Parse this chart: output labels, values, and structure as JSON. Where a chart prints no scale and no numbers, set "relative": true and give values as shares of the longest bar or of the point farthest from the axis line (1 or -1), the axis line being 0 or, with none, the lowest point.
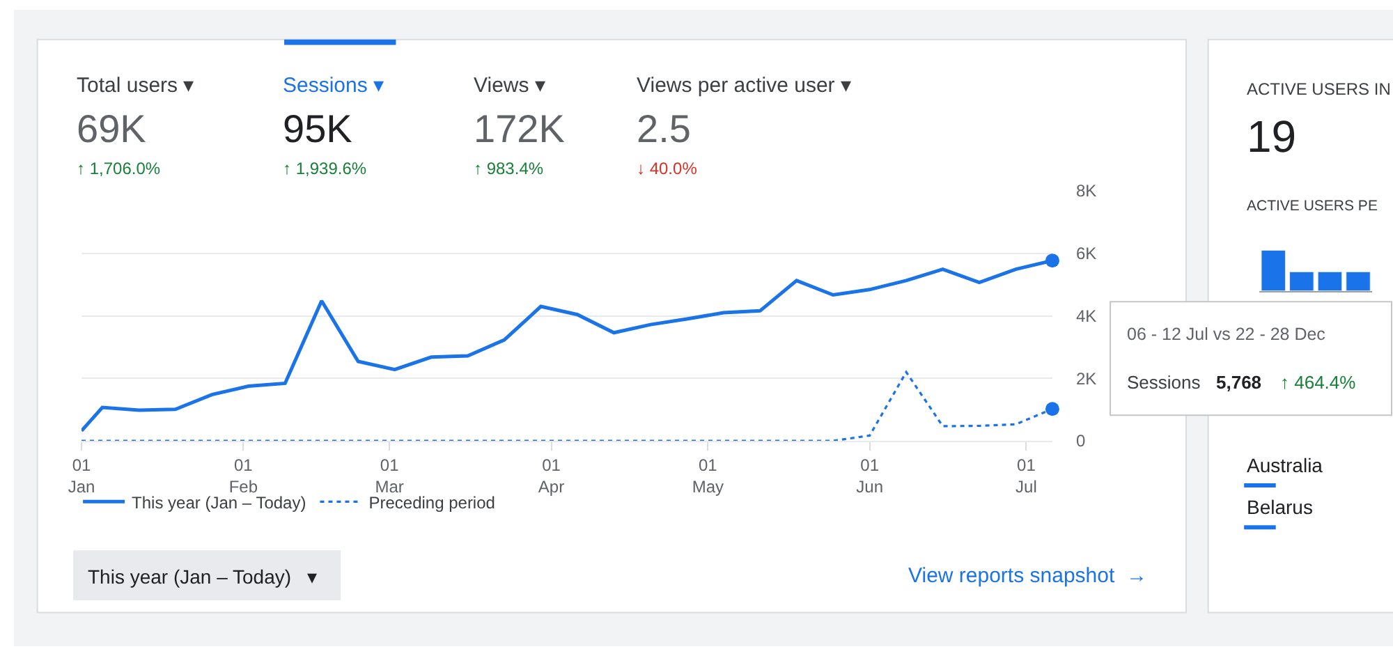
{
  "chart_data": [
    {
      "type": "line",
      "x": [
        "--01-01",
        "--01-05",
        "--01-12",
        "--01-19",
        "--01-26",
        "--02-02",
        "--02-09",
        "--02-16",
        "--02-23",
        "--03-02",
        "--03-09",
        "--03-16",
        "--03-23",
        "--03-30",
        "--04-06",
        "--04-13",
        "--04-20",
        "--04-27",
        "--05-04",
        "--05-11",
        "--05-18",
        "--05-25",
        "--06-01",
        "--06-08",
        "--06-15",
        "--06-22",
        "--06-29",
        "--07-06"
      ],
      "series": [
        {
          "name": "This year (Jan – Today)",
          "color": "#1a73e8",
          "line_style": "solid",
          "values": [
            320,
            1070,
            980,
            1010,
            1480,
            1750,
            1840,
            4480,
            2540,
            2280,
            2680,
            2720,
            3230,
            4300,
            4040,
            3460,
            3720,
            3900,
            4100,
            4160,
            5130,
            4670,
            4840,
            5130,
            5490,
            5070,
            5490,
            5768
          ]
        },
        {
          "name": "Preceding period",
          "color": "#1a73e8",
          "line_style": "dotted",
          "values": [
            0,
            0,
            0,
            0,
            0,
            0,
            0,
            0,
            0,
            0,
            0,
            0,
            0,
            0,
            0,
            0,
            0,
            0,
            0,
            0,
            0,
            0,
            170,
            2200,
            470,
            480,
            530,
            1020
          ]
        }
      ],
      "xlim": [
        "--01-01",
        "--07-06"
      ],
      "xticks": [
        {
          "value": "--01-01",
          "label": "01\nJan"
        },
        {
          "value": "--02-01",
          "label": "01\nFeb"
        },
        {
          "value": "--03-01",
          "label": "01\nMar"
        },
        {
          "value": "--04-01",
          "label": "01\nApr"
        },
        {
          "value": "--05-01",
          "label": "01\nMay"
        },
        {
          "value": "--06-01",
          "label": "01\nJun"
        },
        {
          "value": "--07-01",
          "label": "01\nJul"
        }
      ],
      "ylim": [
        0,
        8000
      ],
      "yticks": [
        {
          "value": 0,
          "label": "0"
        },
        {
          "value": 2000,
          "label": "2K"
        },
        {
          "value": 4000,
          "label": "4K"
        },
        {
          "value": 6000,
          "label": "6K"
        },
        {
          "value": 8000,
          "label": "8K"
        }
      ],
      "grid": "y",
      "legend": "bottom left",
      "marker": "none",
      "annotations": [
        "Total users ▾",
        "69K",
        "↑ 1,706.0%",
        "Sessions ▾",
        "95K",
        "↑ 1,939.6%",
        "Views ▾",
        "172K",
        "↑ 983.4%",
        "Views per active user ▾",
        "2.5",
        "↓ 40.0%",
        "06 - 12 Jul vs 22 - 28 Dec",
        "Sessions",
        "5,768",
        "↑ 464.4%",
        "This year (Jan – Today)   ▾",
        "View reports snapshot  →"
      ]
    },
    {
      "type": "bar",
      "title": "ACTIVE USERS PE",
      "categories": [
        null,
        null,
        null,
        null
      ],
      "values": [
        1,
        0.47,
        0.47,
        0.47
      ],
      "color": "#1a73e8",
      "relative": true,
      "annotations": [
        "ACTIVE USERS IN",
        "19",
        "Australia",
        "Belarus"
      ]
    }
  ]
}
